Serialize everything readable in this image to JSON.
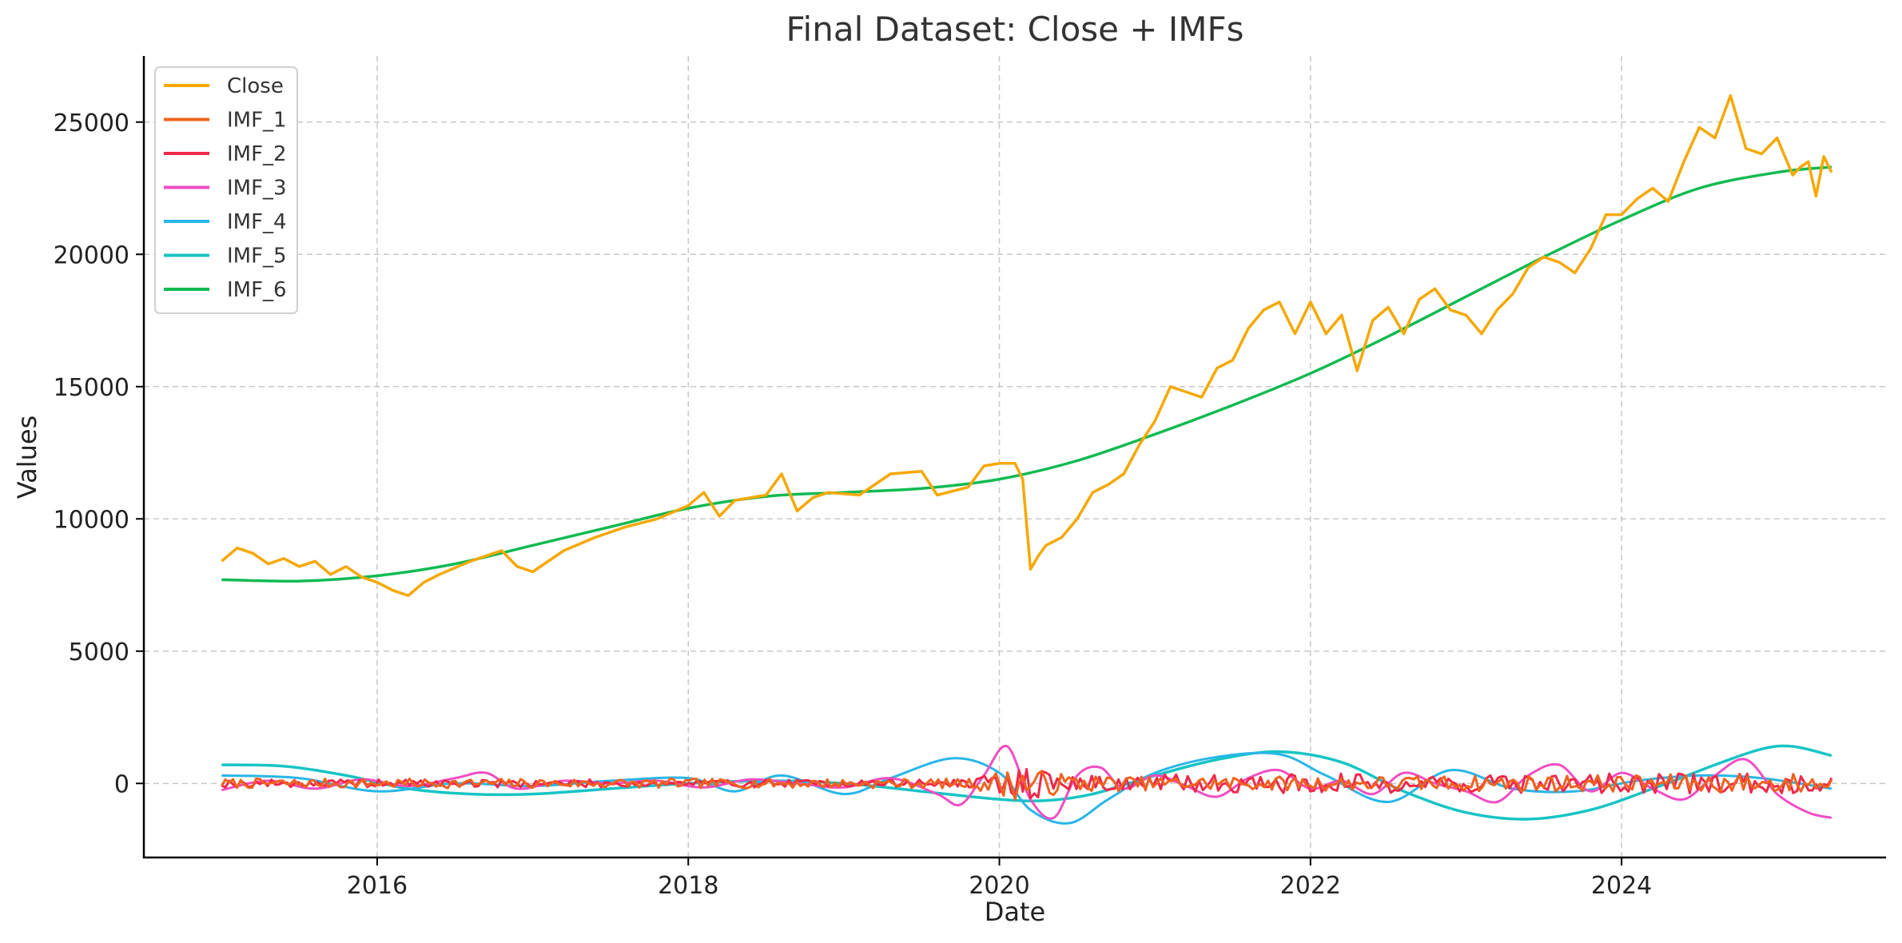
{
  "chart_data": {
    "type": "line",
    "title": "Final Dataset: Close + IMFs",
    "xlabel": "Date",
    "ylabel": "Values",
    "xlim": [
      2014.5,
      2025.7
    ],
    "ylim": [
      -2800,
      27500
    ],
    "x_ticks": [
      {
        "value": 2016,
        "label": "2016"
      },
      {
        "value": 2018,
        "label": "2018"
      },
      {
        "value": 2020,
        "label": "2020"
      },
      {
        "value": 2022,
        "label": "2022"
      },
      {
        "value": 2024,
        "label": "2024"
      }
    ],
    "y_ticks": [
      {
        "value": 0,
        "label": "0"
      },
      {
        "value": 5000,
        "label": "5000"
      },
      {
        "value": 10000,
        "label": "10000"
      },
      {
        "value": 15000,
        "label": "15000"
      },
      {
        "value": 20000,
        "label": "20000"
      },
      {
        "value": 25000,
        "label": "25000"
      }
    ],
    "grid": true,
    "legend_position": "top-left",
    "series": [
      {
        "name": "Close",
        "color": "#F5A800",
        "width": 3.5,
        "x": [
          2015.0,
          2015.1,
          2015.2,
          2015.3,
          2015.4,
          2015.5,
          2015.6,
          2015.7,
          2015.8,
          2015.9,
          2016.0,
          2016.1,
          2016.2,
          2016.3,
          2016.4,
          2016.6,
          2016.8,
          2016.9,
          2017.0,
          2017.2,
          2017.4,
          2017.6,
          2017.8,
          2018.0,
          2018.1,
          2018.2,
          2018.3,
          2018.5,
          2018.6,
          2018.7,
          2018.8,
          2018.9,
          2019.1,
          2019.3,
          2019.5,
          2019.6,
          2019.8,
          2019.9,
          2020.0,
          2020.1,
          2020.15,
          2020.2,
          2020.25,
          2020.3,
          2020.4,
          2020.5,
          2020.6,
          2020.7,
          2020.8,
          2020.9,
          2021.0,
          2021.1,
          2021.2,
          2021.3,
          2021.4,
          2021.5,
          2021.6,
          2021.7,
          2021.8,
          2021.9,
          2022.0,
          2022.1,
          2022.2,
          2022.3,
          2022.4,
          2022.5,
          2022.6,
          2022.7,
          2022.8,
          2022.9,
          2023.0,
          2023.1,
          2023.2,
          2023.3,
          2023.4,
          2023.5,
          2023.6,
          2023.7,
          2023.8,
          2023.9,
          2024.0,
          2024.1,
          2024.2,
          2024.3,
          2024.4,
          2024.5,
          2024.6,
          2024.7,
          2024.8,
          2024.9,
          2025.0,
          2025.1,
          2025.15,
          2025.2,
          2025.25,
          2025.3,
          2025.35
        ],
        "y": [
          8400,
          8900,
          8700,
          8300,
          8500,
          8200,
          8400,
          7900,
          8200,
          7800,
          7600,
          7300,
          7100,
          7600,
          7900,
          8400,
          8800,
          8200,
          8000,
          8800,
          9300,
          9700,
          10000,
          10500,
          11000,
          10100,
          10700,
          10900,
          11700,
          10300,
          10800,
          11000,
          10900,
          11700,
          11800,
          10900,
          11200,
          12000,
          12100,
          12100,
          11500,
          8100,
          8600,
          9000,
          9300,
          10000,
          11000,
          11300,
          11700,
          12800,
          13700,
          15000,
          14800,
          14600,
          15700,
          16000,
          17200,
          17900,
          18200,
          17000,
          18200,
          17000,
          17700,
          15600,
          17500,
          18000,
          17000,
          18300,
          18700,
          17900,
          17700,
          17000,
          17900,
          18500,
          19500,
          19900,
          19700,
          19300,
          20200,
          21500,
          21500,
          22100,
          22500,
          22000,
          23500,
          24800,
          24400,
          26000,
          24000,
          23800,
          24400,
          23000,
          23300,
          23500,
          22200,
          23700,
          23100
        ]
      },
      {
        "name": "IMF_1",
        "color": "#F0621E",
        "width": 3,
        "kind": "noise",
        "amp": 180,
        "amp_x": [
          2015.0,
          2019.8,
          2020.1,
          2020.5,
          2021.0,
          2024.0,
          2025.35
        ],
        "amp_v": [
          1,
          1,
          3.5,
          1.8,
          1.4,
          1.8,
          2.2
        ],
        "seed": 7
      },
      {
        "name": "IMF_2",
        "color": "#F0284A",
        "width": 3,
        "kind": "noise",
        "amp": 150,
        "amp_x": [
          2015.0,
          2019.8,
          2020.15,
          2020.6,
          2021.5,
          2024.0,
          2025.35
        ],
        "amp_v": [
          1,
          1,
          4,
          2,
          2.5,
          2.5,
          2.5
        ],
        "seed": 19
      },
      {
        "name": "IMF_3",
        "color": "#F04EC4",
        "width": 3,
        "x": [
          2015.0,
          2015.3,
          2015.6,
          2015.9,
          2016.2,
          2016.5,
          2016.7,
          2016.9,
          2017.2,
          2017.5,
          2017.8,
          2018.1,
          2018.4,
          2018.7,
          2019.0,
          2019.3,
          2019.6,
          2019.75,
          2019.9,
          2020.05,
          2020.2,
          2020.35,
          2020.5,
          2020.65,
          2020.8,
          2021.0,
          2021.2,
          2021.4,
          2021.6,
          2021.8,
          2022.0,
          2022.2,
          2022.4,
          2022.6,
          2022.8,
          2023.0,
          2023.2,
          2023.4,
          2023.6,
          2023.8,
          2024.0,
          2024.2,
          2024.4,
          2024.6,
          2024.8,
          2025.0,
          2025.2,
          2025.35
        ],
        "y": [
          -250,
          100,
          -200,
          150,
          -100,
          200,
          400,
          -200,
          100,
          0,
          100,
          -150,
          150,
          0,
          -150,
          200,
          -400,
          -800,
          300,
          1400,
          -600,
          -1300,
          300,
          600,
          -200,
          300,
          -100,
          -500,
          200,
          500,
          -200,
          100,
          -400,
          400,
          0,
          -300,
          -700,
          300,
          700,
          -300,
          400,
          -200,
          -600,
          300,
          900,
          -400,
          -1100,
          -1300
        ]
      },
      {
        "name": "IMF_4",
        "color": "#29B6E8",
        "width": 3,
        "x": [
          2015.0,
          2015.5,
          2016.0,
          2016.5,
          2017.0,
          2017.5,
          2018.0,
          2018.3,
          2018.6,
          2019.0,
          2019.3,
          2019.7,
          2020.0,
          2020.2,
          2020.45,
          2020.7,
          2021.0,
          2021.4,
          2021.8,
          2022.1,
          2022.5,
          2022.9,
          2023.3,
          2023.7,
          2024.1,
          2024.5,
          2024.9,
          2025.35
        ],
        "y": [
          300,
          200,
          -300,
          0,
          -100,
          100,
          200,
          -300,
          300,
          -400,
          200,
          950,
          400,
          -1000,
          -1500,
          -600,
          400,
          1000,
          1100,
          300,
          -700,
          500,
          -200,
          -300,
          100,
          300,
          200,
          -200
        ]
      },
      {
        "name": "IMF_5",
        "color": "#18C4C4",
        "width": 3.5,
        "x": [
          2015.0,
          2015.4,
          2015.8,
          2016.2,
          2016.6,
          2017.0,
          2017.5,
          2018.0,
          2018.5,
          2019.0,
          2019.5,
          2020.0,
          2020.3,
          2020.6,
          2021.0,
          2021.4,
          2021.8,
          2022.2,
          2022.6,
          2023.0,
          2023.4,
          2023.8,
          2024.2,
          2024.6,
          2024.9,
          2025.1,
          2025.35
        ],
        "y": [
          700,
          650,
          300,
          -200,
          -400,
          -400,
          -200,
          0,
          100,
          0,
          -300,
          -600,
          -650,
          -400,
          300,
          900,
          1200,
          800,
          -300,
          -1100,
          -1350,
          -1000,
          -200,
          700,
          1300,
          1400,
          1050
        ]
      },
      {
        "name": "IMF_6",
        "color": "#12BA52",
        "width": 3.5,
        "x": [
          2015.0,
          2015.5,
          2016.0,
          2016.5,
          2017.0,
          2017.5,
          2018.0,
          2018.5,
          2019.0,
          2019.5,
          2020.0,
          2020.5,
          2021.0,
          2021.5,
          2022.0,
          2022.5,
          2023.0,
          2023.5,
          2024.0,
          2024.5,
          2025.0,
          2025.35
        ],
        "y": [
          7700,
          7650,
          7850,
          8300,
          9000,
          9700,
          10400,
          10850,
          11000,
          11150,
          11500,
          12200,
          13200,
          14300,
          15500,
          16900,
          18400,
          19900,
          21300,
          22500,
          23100,
          23300
        ]
      }
    ]
  }
}
